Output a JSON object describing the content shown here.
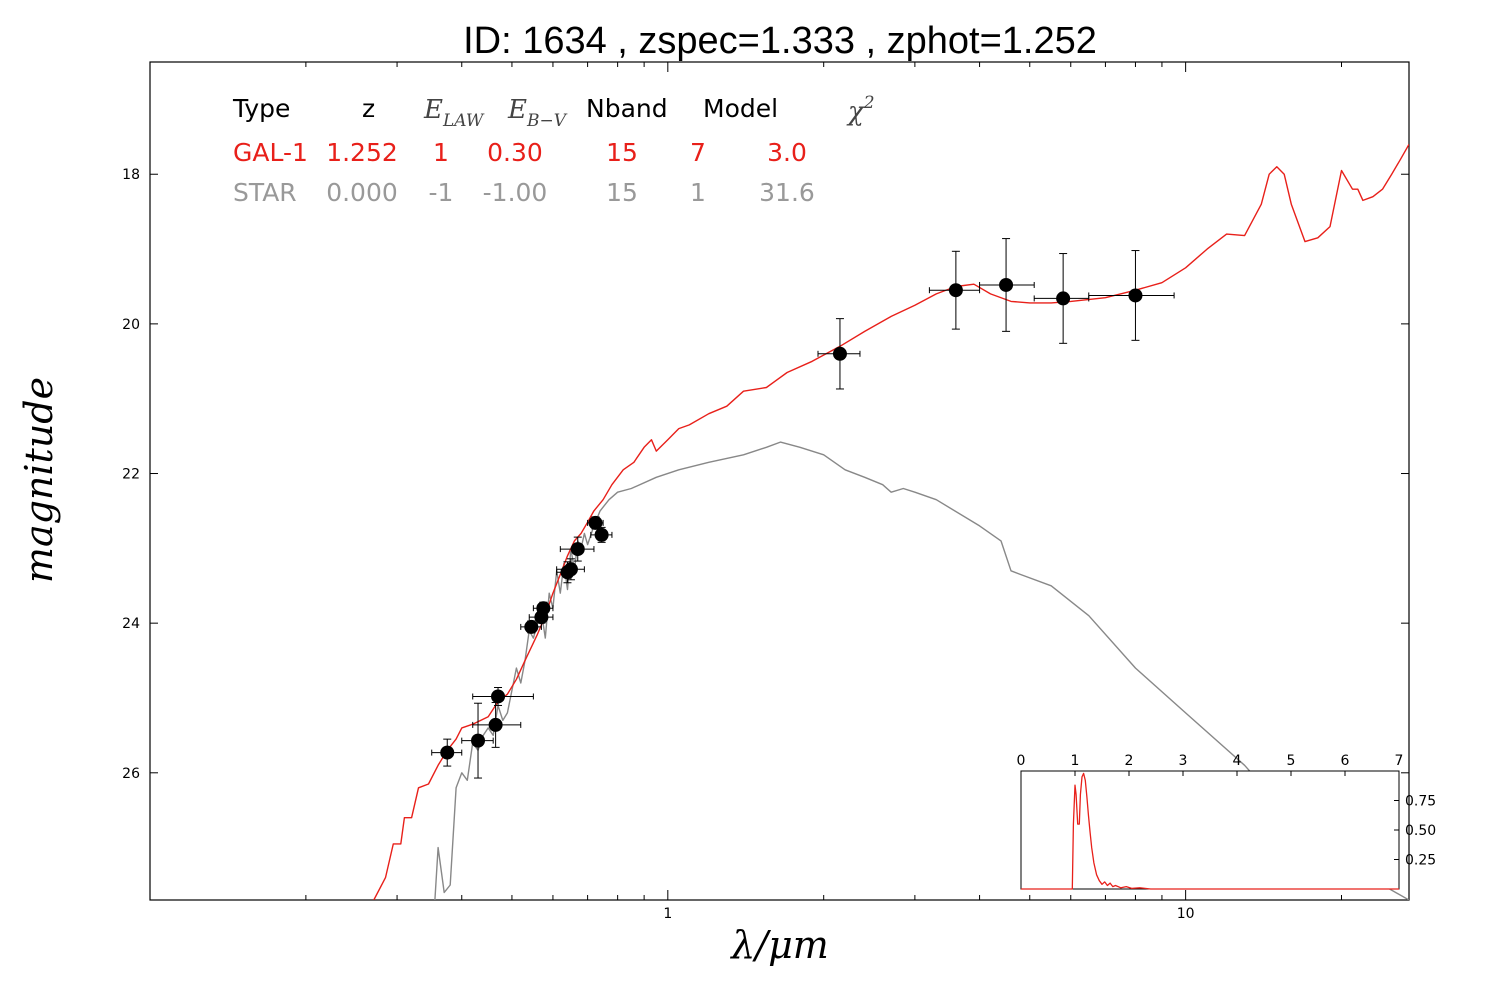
{
  "chart_data": {
    "type": "scatter",
    "title": "ID:  1634  , zspec=1.333 , zphot=1.252",
    "xlabel": "λ/μm",
    "ylabel": "magnitude",
    "xscale": "log",
    "xlim": [
      0.1,
      27
    ],
    "ylim": [
      27.7,
      16.5
    ],
    "x_tick_labels": [
      "1",
      "10"
    ],
    "y_tick_labels": [
      "18",
      "20",
      "22",
      "24",
      "26"
    ],
    "grid": false,
    "table": {
      "header": {
        "type": "Type",
        "z": "z",
        "elaw": "E",
        "elaw_sub": "LAW",
        "ebv": "E",
        "ebv_sub": "B−V",
        "nband": "Nband",
        "model": "Model",
        "chi2": "χ",
        "chi2_sup": "2"
      },
      "rows": [
        {
          "type": "GAL-1",
          "z": "1.252",
          "law": "1",
          "ebv": "0.30",
          "nband": "15",
          "model": "7",
          "chi2": "3.0",
          "color": "#e8201a"
        },
        {
          "type": "STAR",
          "z": "0.000",
          "law": "-1",
          "ebv": "-1.00",
          "nband": "15",
          "model": "1",
          "chi2": "31.6",
          "color": "#999999"
        }
      ]
    },
    "points": [
      {
        "x": 0.375,
        "y": 25.73,
        "xerr": [
          0.35,
          0.4
        ],
        "yerr": 0.18
      },
      {
        "x": 0.43,
        "y": 25.57,
        "xerr": [
          0.4,
          0.46
        ],
        "yerr": 0.5
      },
      {
        "x": 0.465,
        "y": 25.36,
        "xerr": [
          0.42,
          0.52
        ],
        "yerr": 0.3
      },
      {
        "x": 0.47,
        "y": 24.98,
        "xerr": [
          0.42,
          0.55
        ],
        "yerr": 0.12
      },
      {
        "x": 0.545,
        "y": 24.05,
        "xerr": [
          0.52,
          0.57
        ],
        "yerr": 0.08
      },
      {
        "x": 0.57,
        "y": 23.92,
        "xerr": [
          0.54,
          0.6
        ],
        "yerr": 0.08
      },
      {
        "x": 0.575,
        "y": 23.8,
        "xerr": [
          0.55,
          0.6
        ],
        "yerr": 0.08
      },
      {
        "x": 0.64,
        "y": 23.32,
        "xerr": [
          0.61,
          0.66
        ],
        "yerr": 0.14
      },
      {
        "x": 0.65,
        "y": 23.28,
        "xerr": [
          0.61,
          0.69
        ],
        "yerr": 0.14
      },
      {
        "x": 0.67,
        "y": 23.01,
        "xerr": [
          0.62,
          0.72
        ],
        "yerr": 0.16
      },
      {
        "x": 0.725,
        "y": 22.66,
        "xerr": [
          0.7,
          0.75
        ],
        "yerr": 0.08
      },
      {
        "x": 0.745,
        "y": 22.82,
        "xerr": [
          0.71,
          0.78
        ],
        "yerr": 0.1
      },
      {
        "x": 2.15,
        "y": 20.4,
        "xerr": [
          1.95,
          2.35
        ],
        "yerr": 0.47
      },
      {
        "x": 3.6,
        "y": 19.55,
        "xerr": [
          3.2,
          4.0
        ],
        "yerr": 0.52
      },
      {
        "x": 4.5,
        "y": 19.48,
        "xerr": [
          4.0,
          5.1
        ],
        "yerr": 0.62
      },
      {
        "x": 5.8,
        "y": 19.66,
        "xerr": [
          5.1,
          6.5
        ],
        "yerr": 0.6
      },
      {
        "x": 8.0,
        "y": 19.62,
        "xerr": [
          6.5,
          9.5
        ],
        "yerr": 0.6
      }
    ],
    "series": [
      {
        "name": "GAL-1",
        "color": "#e8201a",
        "x": [
          0.2705,
          0.285,
          0.295,
          0.305,
          0.31,
          0.32,
          0.33,
          0.345,
          0.36,
          0.375,
          0.39,
          0.4,
          0.42,
          0.45,
          0.47,
          0.49,
          0.51,
          0.53,
          0.56,
          0.58,
          0.6,
          0.62,
          0.64,
          0.66,
          0.68,
          0.7,
          0.72,
          0.75,
          0.78,
          0.82,
          0.86,
          0.9,
          0.93,
          0.95,
          1.0,
          1.05,
          1.1,
          1.2,
          1.3,
          1.4,
          1.55,
          1.7,
          1.9,
          2.15,
          2.4,
          2.7,
          3.0,
          3.3,
          3.6,
          3.9,
          4.2,
          4.6,
          5.0,
          5.5,
          6.0,
          7.0,
          8.0,
          9.0,
          10.0,
          11.0,
          12.0,
          13.0,
          14.0,
          14.5,
          15.0,
          15.5,
          16.0,
          17.0,
          18.0,
          19.0,
          20.0,
          21.0,
          21.5,
          22.0,
          23.0,
          24.0,
          25.0,
          26.0,
          27.0
        ],
        "y": [
          27.7,
          27.4,
          26.95,
          26.95,
          26.6,
          26.6,
          26.2,
          26.15,
          25.9,
          25.7,
          25.55,
          25.4,
          25.35,
          25.25,
          25.05,
          24.95,
          24.75,
          24.5,
          24.15,
          23.9,
          23.6,
          23.35,
          23.1,
          22.9,
          22.8,
          22.65,
          22.5,
          22.35,
          22.15,
          21.95,
          21.85,
          21.65,
          21.55,
          21.7,
          21.55,
          21.4,
          21.35,
          21.2,
          21.1,
          20.9,
          20.85,
          20.65,
          20.5,
          20.3,
          20.1,
          19.9,
          19.75,
          19.6,
          19.5,
          19.47,
          19.6,
          19.7,
          19.72,
          19.72,
          19.7,
          19.65,
          19.55,
          19.45,
          19.25,
          19.0,
          18.8,
          18.82,
          18.4,
          18.0,
          17.9,
          18.0,
          18.4,
          18.9,
          18.85,
          18.7,
          17.95,
          18.2,
          18.2,
          18.35,
          18.3,
          18.2,
          18.0,
          17.8,
          17.6
        ]
      },
      {
        "name": "STAR",
        "color": "#888888",
        "x": [
          0.355,
          0.36,
          0.37,
          0.38,
          0.39,
          0.4,
          0.41,
          0.42,
          0.43,
          0.44,
          0.45,
          0.46,
          0.47,
          0.48,
          0.49,
          0.5,
          0.51,
          0.52,
          0.53,
          0.54,
          0.55,
          0.56,
          0.57,
          0.58,
          0.59,
          0.6,
          0.61,
          0.62,
          0.63,
          0.64,
          0.65,
          0.66,
          0.67,
          0.68,
          0.69,
          0.7,
          0.72,
          0.74,
          0.77,
          0.8,
          0.85,
          0.95,
          1.05,
          1.2,
          1.4,
          1.55,
          1.65,
          1.8,
          2.0,
          2.2,
          2.4,
          2.6,
          2.7,
          2.85,
          3.0,
          3.3,
          4.0,
          4.4,
          4.6,
          4.8,
          5.5,
          6.5,
          8.0,
          10.0,
          13.0,
          16.0,
          20.0,
          24.0,
          27.0
        ],
        "y": [
          27.7,
          27.0,
          27.6,
          27.5,
          26.2,
          26.0,
          26.1,
          25.6,
          25.7,
          25.5,
          25.4,
          25.5,
          25.1,
          25.3,
          25.2,
          24.9,
          24.6,
          24.8,
          24.5,
          24.1,
          24.2,
          24.0,
          23.85,
          24.2,
          23.6,
          23.8,
          23.3,
          23.6,
          23.2,
          23.55,
          23.0,
          23.3,
          22.9,
          23.0,
          22.8,
          22.95,
          22.7,
          22.5,
          22.35,
          22.25,
          22.2,
          22.05,
          21.95,
          21.85,
          21.75,
          21.65,
          21.58,
          21.65,
          21.75,
          21.95,
          22.05,
          22.15,
          22.25,
          22.2,
          22.25,
          22.35,
          22.7,
          22.9,
          23.3,
          23.35,
          23.5,
          23.9,
          24.6,
          25.2,
          25.9,
          26.6,
          27.1,
          27.5,
          27.7
        ]
      }
    ],
    "inset": {
      "xlim": [
        0,
        7
      ],
      "x_tick_labels": [
        "0",
        "1",
        "2",
        "3",
        "4",
        "5",
        "6",
        "7"
      ],
      "y_tick_labels": [
        "0.25",
        "0.50",
        "0.75"
      ],
      "ylim": [
        0,
        1.0
      ],
      "color": "#e8201a",
      "x": [
        0.0,
        0.95,
        0.97,
        1.0,
        1.02,
        1.05,
        1.08,
        1.1,
        1.13,
        1.16,
        1.19,
        1.22,
        1.25,
        1.28,
        1.31,
        1.35,
        1.4,
        1.45,
        1.5,
        1.55,
        1.6,
        1.65,
        1.7,
        1.75,
        1.85,
        1.95,
        2.05,
        2.2,
        2.4,
        7.0
      ],
      "y": [
        0.0,
        0.0,
        0.55,
        0.88,
        0.8,
        0.55,
        0.55,
        0.8,
        0.95,
        0.98,
        0.92,
        0.78,
        0.62,
        0.48,
        0.35,
        0.22,
        0.12,
        0.07,
        0.04,
        0.06,
        0.03,
        0.05,
        0.02,
        0.03,
        0.01,
        0.02,
        0.005,
        0.01,
        0.0,
        0.0
      ]
    }
  }
}
